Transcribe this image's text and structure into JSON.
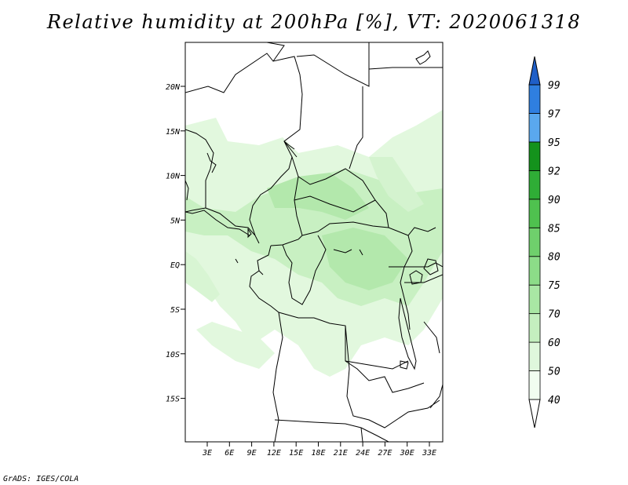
{
  "title": "Relative humidity at 200hPa [%], VT: 2020061318",
  "credit": "GrADS: IGES/COLA",
  "map": {
    "lat_labels": [
      "20N",
      "15N",
      "10N",
      "5N",
      "EQ",
      "5S",
      "10S",
      "15S"
    ],
    "lon_labels": [
      "3E",
      "6E",
      "9E",
      "12E",
      "15E",
      "18E",
      "21E",
      "24E",
      "27E",
      "30E",
      "33E"
    ]
  },
  "colorbar": {
    "levels": [
      "40",
      "50",
      "60",
      "70",
      "75",
      "80",
      "85",
      "90",
      "92",
      "95",
      "97",
      "99"
    ],
    "colors": [
      "#f1fdf0",
      "#dff7dc",
      "#c4efbf",
      "#a9e7a4",
      "#8cdc88",
      "#6fd06c",
      "#4fc14f",
      "#2fad36",
      "#14921c",
      "#5aa8ee",
      "#2f7fe0",
      "#1f5fc8"
    ]
  },
  "colors": {
    "land_line": "#000000",
    "light_green": "#e2f8de",
    "mid_green": "#c8f0c2"
  }
}
